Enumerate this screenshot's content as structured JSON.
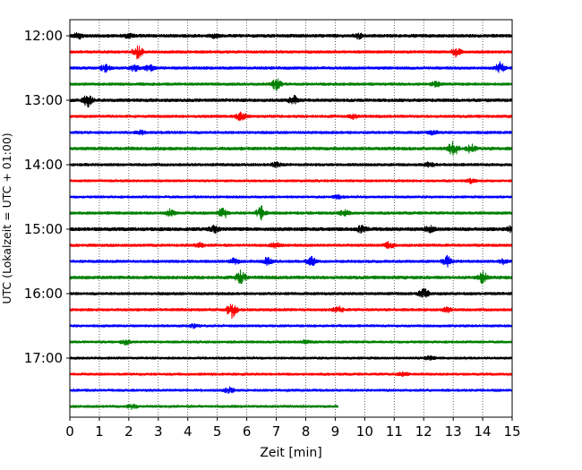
{
  "chart_data": {
    "type": "line",
    "title": "",
    "xlabel": "Zeit  [min]",
    "ylabel": "UTC (Lokalzeit = UTC + 01:00)",
    "xlim": [
      0,
      15
    ],
    "x_ticks": [
      "0",
      "1",
      "2",
      "3",
      "4",
      "5",
      "6",
      "7",
      "8",
      "9",
      "10",
      "11",
      "12",
      "13",
      "14",
      "15"
    ],
    "y_ticks": [
      "12:00",
      "13:00",
      "14:00",
      "15:00",
      "16:00",
      "17:00"
    ],
    "vertical_grid": "dotted",
    "colors": [
      "#000000",
      "#ff0000",
      "#0000ff",
      "#008000"
    ],
    "series": [
      {
        "row_start": "12:00",
        "color": "#000000",
        "x_end": 15,
        "amplitude": 0.5,
        "events": [
          [
            0.3,
            0.7
          ],
          [
            2.0,
            0.6
          ],
          [
            4.9,
            0.5
          ],
          [
            9.8,
            0.7
          ]
        ]
      },
      {
        "row_start": "12:15",
        "color": "#ff0000",
        "x_end": 15,
        "amplitude": 0.45,
        "events": [
          [
            2.3,
            1.5
          ],
          [
            13.1,
            1.0
          ]
        ]
      },
      {
        "row_start": "12:30",
        "color": "#0000ff",
        "x_end": 15,
        "amplitude": 0.45,
        "events": [
          [
            1.2,
            0.9
          ],
          [
            2.2,
            0.7
          ],
          [
            2.7,
            0.8
          ],
          [
            14.6,
            1.2
          ]
        ]
      },
      {
        "row_start": "12:45",
        "color": "#008000",
        "x_end": 15,
        "amplitude": 0.45,
        "events": [
          [
            7.0,
            1.6
          ],
          [
            12.4,
            0.6
          ]
        ]
      },
      {
        "row_start": "13:00",
        "color": "#000000",
        "x_end": 15,
        "amplitude": 0.5,
        "events": [
          [
            0.6,
            1.6
          ],
          [
            7.6,
            1.0
          ]
        ]
      },
      {
        "row_start": "13:15",
        "color": "#ff0000",
        "x_end": 15,
        "amplitude": 0.45,
        "events": [
          [
            5.8,
            1.1
          ],
          [
            9.6,
            0.6
          ]
        ]
      },
      {
        "row_start": "13:30",
        "color": "#0000ff",
        "x_end": 15,
        "amplitude": 0.45,
        "events": [
          [
            2.4,
            0.5
          ],
          [
            12.3,
            0.5
          ]
        ]
      },
      {
        "row_start": "13:45",
        "color": "#008000",
        "x_end": 15,
        "amplitude": 0.5,
        "events": [
          [
            13.0,
            1.8
          ],
          [
            13.6,
            1.2
          ]
        ]
      },
      {
        "row_start": "14:00",
        "color": "#000000",
        "x_end": 15,
        "amplitude": 0.45,
        "events": [
          [
            7.0,
            0.6
          ],
          [
            12.2,
            0.6
          ]
        ]
      },
      {
        "row_start": "14:15",
        "color": "#ff0000",
        "x_end": 15,
        "amplitude": 0.4,
        "events": [
          [
            13.6,
            0.5
          ]
        ]
      },
      {
        "row_start": "14:30",
        "color": "#0000ff",
        "x_end": 15,
        "amplitude": 0.4,
        "events": [
          [
            9.1,
            0.5
          ]
        ]
      },
      {
        "row_start": "14:45",
        "color": "#008000",
        "x_end": 15,
        "amplitude": 0.45,
        "events": [
          [
            3.4,
            0.9
          ],
          [
            5.2,
            1.3
          ],
          [
            6.5,
            1.6
          ],
          [
            9.3,
            0.8
          ]
        ]
      },
      {
        "row_start": "15:00",
        "color": "#000000",
        "x_end": 15,
        "amplitude": 0.55,
        "events": [
          [
            4.9,
            0.8
          ],
          [
            9.9,
            0.9
          ],
          [
            12.2,
            0.8
          ],
          [
            15.0,
            0.8
          ]
        ]
      },
      {
        "row_start": "15:15",
        "color": "#ff0000",
        "x_end": 15,
        "amplitude": 0.45,
        "events": [
          [
            4.4,
            0.6
          ],
          [
            7.0,
            0.6
          ],
          [
            10.8,
            1.0
          ]
        ]
      },
      {
        "row_start": "15:30",
        "color": "#0000ff",
        "x_end": 15,
        "amplitude": 0.45,
        "events": [
          [
            5.6,
            0.9
          ],
          [
            6.7,
            0.9
          ],
          [
            8.2,
            1.0
          ],
          [
            12.8,
            1.3
          ],
          [
            14.7,
            0.6
          ]
        ]
      },
      {
        "row_start": "15:45",
        "color": "#008000",
        "x_end": 15,
        "amplitude": 0.5,
        "events": [
          [
            5.8,
            1.8
          ],
          [
            14.0,
            1.6
          ]
        ]
      },
      {
        "row_start": "16:00",
        "color": "#000000",
        "x_end": 15,
        "amplitude": 0.45,
        "events": [
          [
            12.0,
            1.4
          ]
        ]
      },
      {
        "row_start": "16:15",
        "color": "#ff0000",
        "x_end": 15,
        "amplitude": 0.45,
        "events": [
          [
            5.5,
            1.8
          ],
          [
            9.1,
            0.8
          ],
          [
            12.8,
            0.6
          ]
        ]
      },
      {
        "row_start": "16:30",
        "color": "#0000ff",
        "x_end": 15,
        "amplitude": 0.4,
        "events": [
          [
            4.2,
            0.5
          ]
        ]
      },
      {
        "row_start": "16:45",
        "color": "#008000",
        "x_end": 15,
        "amplitude": 0.4,
        "events": [
          [
            1.9,
            0.7
          ],
          [
            8.0,
            0.5
          ]
        ]
      },
      {
        "row_start": "17:00",
        "color": "#000000",
        "x_end": 15,
        "amplitude": 0.4,
        "events": [
          [
            12.2,
            0.5
          ]
        ]
      },
      {
        "row_start": "17:15",
        "color": "#ff0000",
        "x_end": 15,
        "amplitude": 0.4,
        "events": [
          [
            11.3,
            0.5
          ]
        ]
      },
      {
        "row_start": "17:30",
        "color": "#0000ff",
        "x_end": 15,
        "amplitude": 0.4,
        "events": [
          [
            5.4,
            0.7
          ]
        ]
      },
      {
        "row_start": "17:45",
        "color": "#008000",
        "x_end": 9.1,
        "amplitude": 0.4,
        "events": [
          [
            2.1,
            0.6
          ]
        ]
      }
    ]
  }
}
